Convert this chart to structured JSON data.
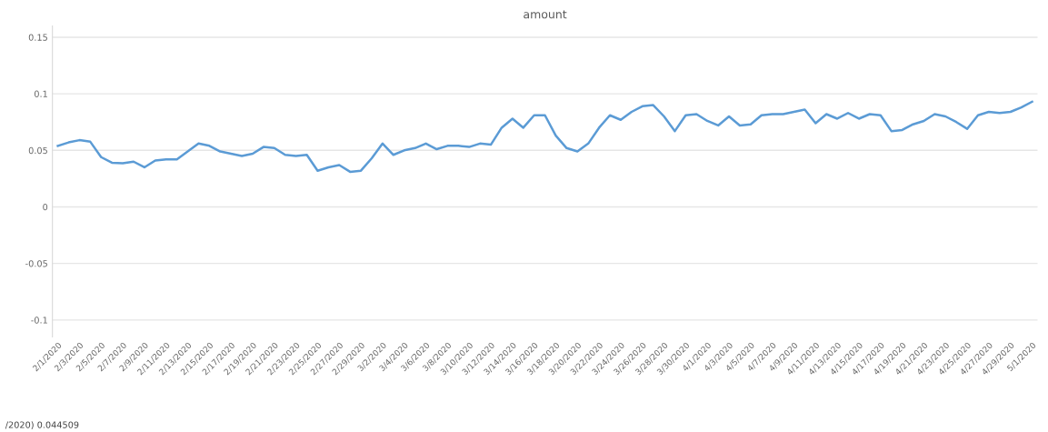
{
  "chart_data": {
    "type": "line",
    "title": "amount",
    "x": [
      "2020-02-01",
      "2020-02-02",
      "2020-02-03",
      "2020-02-04",
      "2020-02-05",
      "2020-02-06",
      "2020-02-07",
      "2020-02-08",
      "2020-02-09",
      "2020-02-10",
      "2020-02-11",
      "2020-02-12",
      "2020-02-13",
      "2020-02-14",
      "2020-02-15",
      "2020-02-16",
      "2020-02-17",
      "2020-02-18",
      "2020-02-19",
      "2020-02-20",
      "2020-02-21",
      "2020-02-22",
      "2020-02-23",
      "2020-02-24",
      "2020-02-25",
      "2020-02-26",
      "2020-02-27",
      "2020-02-28",
      "2020-02-29",
      "2020-03-01",
      "2020-03-02",
      "2020-03-03",
      "2020-03-04",
      "2020-03-05",
      "2020-03-06",
      "2020-03-07",
      "2020-03-08",
      "2020-03-09",
      "2020-03-10",
      "2020-03-11",
      "2020-03-12",
      "2020-03-13",
      "2020-03-14",
      "2020-03-15",
      "2020-03-16",
      "2020-03-17",
      "2020-03-18",
      "2020-03-19",
      "2020-03-20",
      "2020-03-21",
      "2020-03-22",
      "2020-03-23",
      "2020-03-24",
      "2020-03-25",
      "2020-03-26",
      "2020-03-27",
      "2020-03-28",
      "2020-03-29",
      "2020-03-30",
      "2020-03-31",
      "2020-04-01",
      "2020-04-02",
      "2020-04-03",
      "2020-04-04",
      "2020-04-05",
      "2020-04-06",
      "2020-04-07",
      "2020-04-08",
      "2020-04-09",
      "2020-04-10",
      "2020-04-11",
      "2020-04-12",
      "2020-04-13",
      "2020-04-14",
      "2020-04-15",
      "2020-04-16",
      "2020-04-17",
      "2020-04-18",
      "2020-04-19",
      "2020-04-20",
      "2020-04-21",
      "2020-04-22",
      "2020-04-23",
      "2020-04-24",
      "2020-04-25",
      "2020-04-26",
      "2020-04-27",
      "2020-04-28",
      "2020-04-29",
      "2020-04-30",
      "2020-05-01"
    ],
    "series": [
      {
        "color": "#5b9bd5",
        "values": [
          0.054,
          0.057,
          0.059,
          0.0576,
          0.044,
          0.039,
          0.0386,
          0.04,
          0.035,
          0.041,
          0.042,
          0.042,
          0.049,
          0.056,
          0.054,
          0.049,
          0.047,
          0.045,
          0.047,
          0.053,
          0.052,
          0.046,
          0.045,
          0.046,
          0.032,
          0.035,
          0.037,
          0.031,
          0.032,
          0.043,
          0.056,
          0.046,
          0.05,
          0.052,
          0.056,
          0.051,
          0.054,
          0.054,
          0.053,
          0.056,
          0.055,
          0.07,
          0.078,
          0.07,
          0.081,
          0.081,
          0.063,
          0.052,
          0.049,
          0.056,
          0.07,
          0.081,
          0.077,
          0.084,
          0.089,
          0.09,
          0.08,
          0.067,
          0.081,
          0.082,
          0.076,
          0.072,
          0.08,
          0.072,
          0.073,
          0.081,
          0.082,
          0.082,
          0.084,
          0.086,
          0.074,
          0.082,
          0.078,
          0.083,
          0.078,
          0.082,
          0.081,
          0.067,
          0.068,
          0.073,
          0.076,
          0.082,
          0.08,
          0.075,
          0.069,
          0.081,
          0.084,
          0.083,
          0.084,
          0.088,
          0.093
        ]
      }
    ],
    "xlim": [
      "2020-01-31T12:00",
      "2020-05-01T12:00"
    ],
    "xticks": [
      {
        "value": "2020-02-01",
        "label": "2/1/2020"
      },
      {
        "value": "2020-02-03",
        "label": "2/3/2020"
      },
      {
        "value": "2020-02-05",
        "label": "2/5/2020"
      },
      {
        "value": "2020-02-07",
        "label": "2/7/2020"
      },
      {
        "value": "2020-02-09",
        "label": "2/9/2020"
      },
      {
        "value": "2020-02-11",
        "label": "2/11/2020"
      },
      {
        "value": "2020-02-13",
        "label": "2/13/2020"
      },
      {
        "value": "2020-02-15",
        "label": "2/15/2020"
      },
      {
        "value": "2020-02-17",
        "label": "2/17/2020"
      },
      {
        "value": "2020-02-19",
        "label": "2/19/2020"
      },
      {
        "value": "2020-02-21",
        "label": "2/21/2020"
      },
      {
        "value": "2020-02-23",
        "label": "2/23/2020"
      },
      {
        "value": "2020-02-25",
        "label": "2/25/2020"
      },
      {
        "value": "2020-02-27",
        "label": "2/27/2020"
      },
      {
        "value": "2020-02-29",
        "label": "2/29/2020"
      },
      {
        "value": "2020-03-02",
        "label": "3/2/2020"
      },
      {
        "value": "2020-03-04",
        "label": "3/4/2020"
      },
      {
        "value": "2020-03-06",
        "label": "3/6/2020"
      },
      {
        "value": "2020-03-08",
        "label": "3/8/2020"
      },
      {
        "value": "2020-03-10",
        "label": "3/10/2020"
      },
      {
        "value": "2020-03-12",
        "label": "3/12/2020"
      },
      {
        "value": "2020-03-14",
        "label": "3/14/2020"
      },
      {
        "value": "2020-03-16",
        "label": "3/16/2020"
      },
      {
        "value": "2020-03-18",
        "label": "3/18/2020"
      },
      {
        "value": "2020-03-20",
        "label": "3/20/2020"
      },
      {
        "value": "2020-03-22",
        "label": "3/22/2020"
      },
      {
        "value": "2020-03-24",
        "label": "3/24/2020"
      },
      {
        "value": "2020-03-26",
        "label": "3/26/2020"
      },
      {
        "value": "2020-03-28",
        "label": "3/28/2020"
      },
      {
        "value": "2020-03-30",
        "label": "3/30/2020"
      },
      {
        "value": "2020-04-01",
        "label": "4/1/2020"
      },
      {
        "value": "2020-04-03",
        "label": "4/3/2020"
      },
      {
        "value": "2020-04-05",
        "label": "4/5/2020"
      },
      {
        "value": "2020-04-07",
        "label": "4/7/2020"
      },
      {
        "value": "2020-04-09",
        "label": "4/9/2020"
      },
      {
        "value": "2020-04-11",
        "label": "4/11/2020"
      },
      {
        "value": "2020-04-13",
        "label": "4/13/2020"
      },
      {
        "value": "2020-04-15",
        "label": "4/15/2020"
      },
      {
        "value": "2020-04-17",
        "label": "4/17/2020"
      },
      {
        "value": "2020-04-19",
        "label": "4/19/2020"
      },
      {
        "value": "2020-04-21",
        "label": "4/21/2020"
      },
      {
        "value": "2020-04-23",
        "label": "4/23/2020"
      },
      {
        "value": "2020-04-25",
        "label": "4/25/2020"
      },
      {
        "value": "2020-04-27",
        "label": "4/27/2020"
      },
      {
        "value": "2020-04-29",
        "label": "4/29/2020"
      },
      {
        "value": "2020-05-01",
        "label": "5/1/2020"
      }
    ],
    "ylim": [
      -0.115,
      0.16
    ],
    "yticks": [
      -0.1,
      -0.05,
      0,
      0.05,
      0.1,
      0.15
    ],
    "grid": "y",
    "marker": "none",
    "line_style": "solid",
    "annotations": [
      "/2020) 0.044509"
    ]
  }
}
